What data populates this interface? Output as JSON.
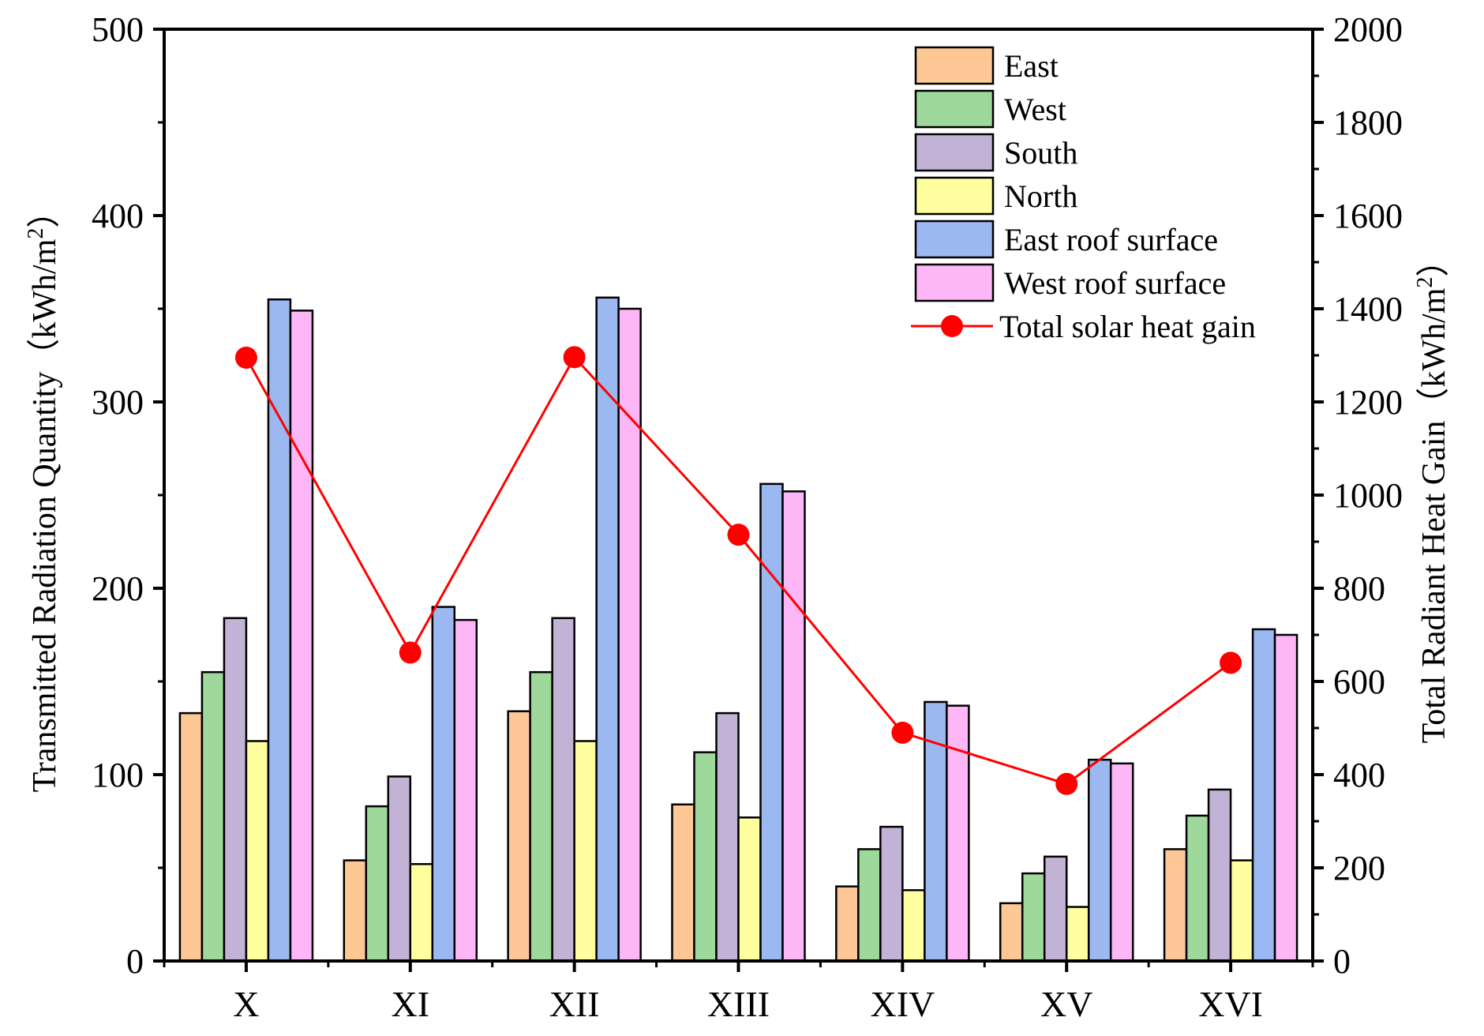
{
  "chart_data": {
    "type": "bar",
    "categories": [
      "X",
      "XI",
      "XII",
      "XIII",
      "XIV",
      "XV",
      "XVI"
    ],
    "series": [
      {
        "name": "East",
        "color": "#FDC896",
        "values": [
          133,
          54,
          134,
          84,
          40,
          31,
          60
        ]
      },
      {
        "name": "West",
        "color": "#9ED89B",
        "values": [
          155,
          83,
          155,
          112,
          60,
          47,
          78
        ]
      },
      {
        "name": "South",
        "color": "#C2B2D6",
        "values": [
          184,
          99,
          184,
          133,
          72,
          56,
          92
        ]
      },
      {
        "name": "North",
        "color": "#FFFFA0",
        "values": [
          118,
          52,
          118,
          77,
          38,
          29,
          54
        ]
      },
      {
        "name": "East roof surface",
        "color": "#9BB8F0",
        "values": [
          355,
          190,
          356,
          256,
          139,
          108,
          178
        ]
      },
      {
        "name": "West roof surface",
        "color": "#FDB6F6",
        "values": [
          349,
          183,
          350,
          252,
          137,
          106,
          175
        ]
      }
    ],
    "line_series": {
      "name": "Total solar heat gain",
      "color": "#FF0000",
      "axis": "right",
      "values": [
        1295,
        662,
        1296,
        915,
        490,
        380,
        640
      ]
    },
    "ylabel": "Transmitted Radiation Quantity（kWh/m",
    "ylabel_sup": "2",
    "ylabel_close": "）",
    "ylabel_right": "Total Radiant Heat Gain（kWh/m",
    "ylabel_right_sup": "2",
    "ylabel_right_close": "）",
    "ylim": [
      0,
      500
    ],
    "ylim_right": [
      0,
      2000
    ],
    "yticks": [
      "0",
      "100",
      "200",
      "300",
      "400",
      "500"
    ],
    "yticks_right": [
      "0",
      "200",
      "400",
      "600",
      "800",
      "1000",
      "1200",
      "1400",
      "1600",
      "1800",
      "2000"
    ],
    "legend_position": "top-right"
  }
}
